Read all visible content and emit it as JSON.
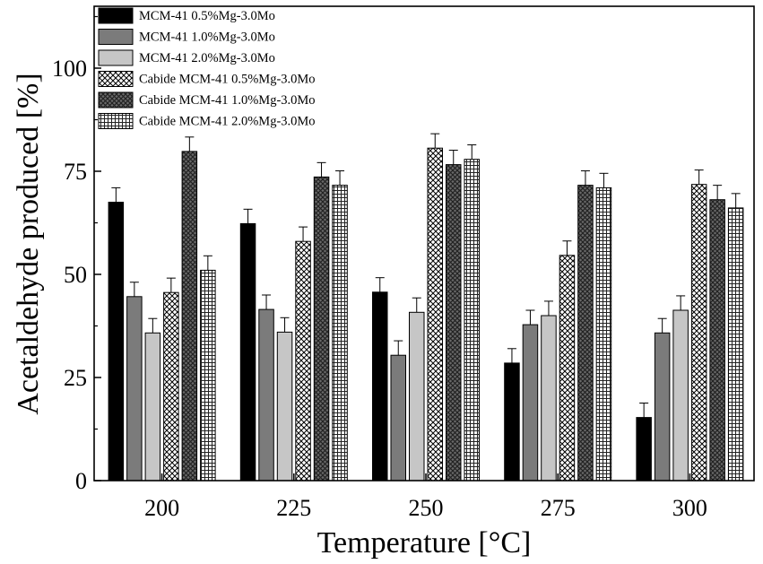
{
  "chart_data": {
    "type": "bar",
    "title": "",
    "xlabel": "Temperature [°C]",
    "ylabel": "Acetaldehyde produced [%]",
    "categories": [
      "200",
      "225",
      "250",
      "275",
      "300"
    ],
    "ylim": [
      0,
      115
    ],
    "yticks": [
      0,
      25,
      50,
      75,
      100
    ],
    "grid": false,
    "legend_position": "top-left",
    "series": [
      {
        "name": "MCM-41 0.5%Mg-3.0Mo",
        "pattern": "solid-black",
        "values": [
          67.5,
          62.3,
          45.7,
          28.5,
          15.3
        ],
        "errors": [
          3.5,
          3.5,
          3.5,
          3.5,
          3.5
        ]
      },
      {
        "name": "MCM-41 1.0%Mg-3.0Mo",
        "pattern": "solid-darkgray",
        "values": [
          44.6,
          41.5,
          30.4,
          37.8,
          35.8
        ],
        "errors": [
          3.5,
          3.5,
          3.5,
          3.5,
          3.5
        ]
      },
      {
        "name": "MCM-41 2.0%Mg-3.0Mo",
        "pattern": "solid-lightgray",
        "values": [
          35.8,
          36.0,
          40.8,
          40.0,
          41.3
        ],
        "errors": [
          3.5,
          3.5,
          3.5,
          3.5,
          3.5
        ]
      },
      {
        "name": "Cabide MCM-41 0.5%Mg-3.0Mo",
        "pattern": "crosshatch-white",
        "values": [
          45.6,
          58.0,
          80.6,
          54.6,
          71.8
        ],
        "errors": [
          3.5,
          3.5,
          3.5,
          3.5,
          3.5
        ]
      },
      {
        "name": "Cabide MCM-41 1.0%Mg-3.0Mo",
        "pattern": "crosshatch-dark",
        "values": [
          79.8,
          73.6,
          76.6,
          71.6,
          68.1
        ],
        "errors": [
          3.5,
          3.5,
          3.5,
          3.5,
          3.5
        ]
      },
      {
        "name": "Cabide MCM-41 2.0%Mg-3.0Mo",
        "pattern": "grid-white",
        "values": [
          51.0,
          71.6,
          77.9,
          71.0,
          66.1
        ],
        "errors": [
          3.5,
          3.5,
          3.5,
          3.5,
          3.5
        ]
      }
    ]
  }
}
